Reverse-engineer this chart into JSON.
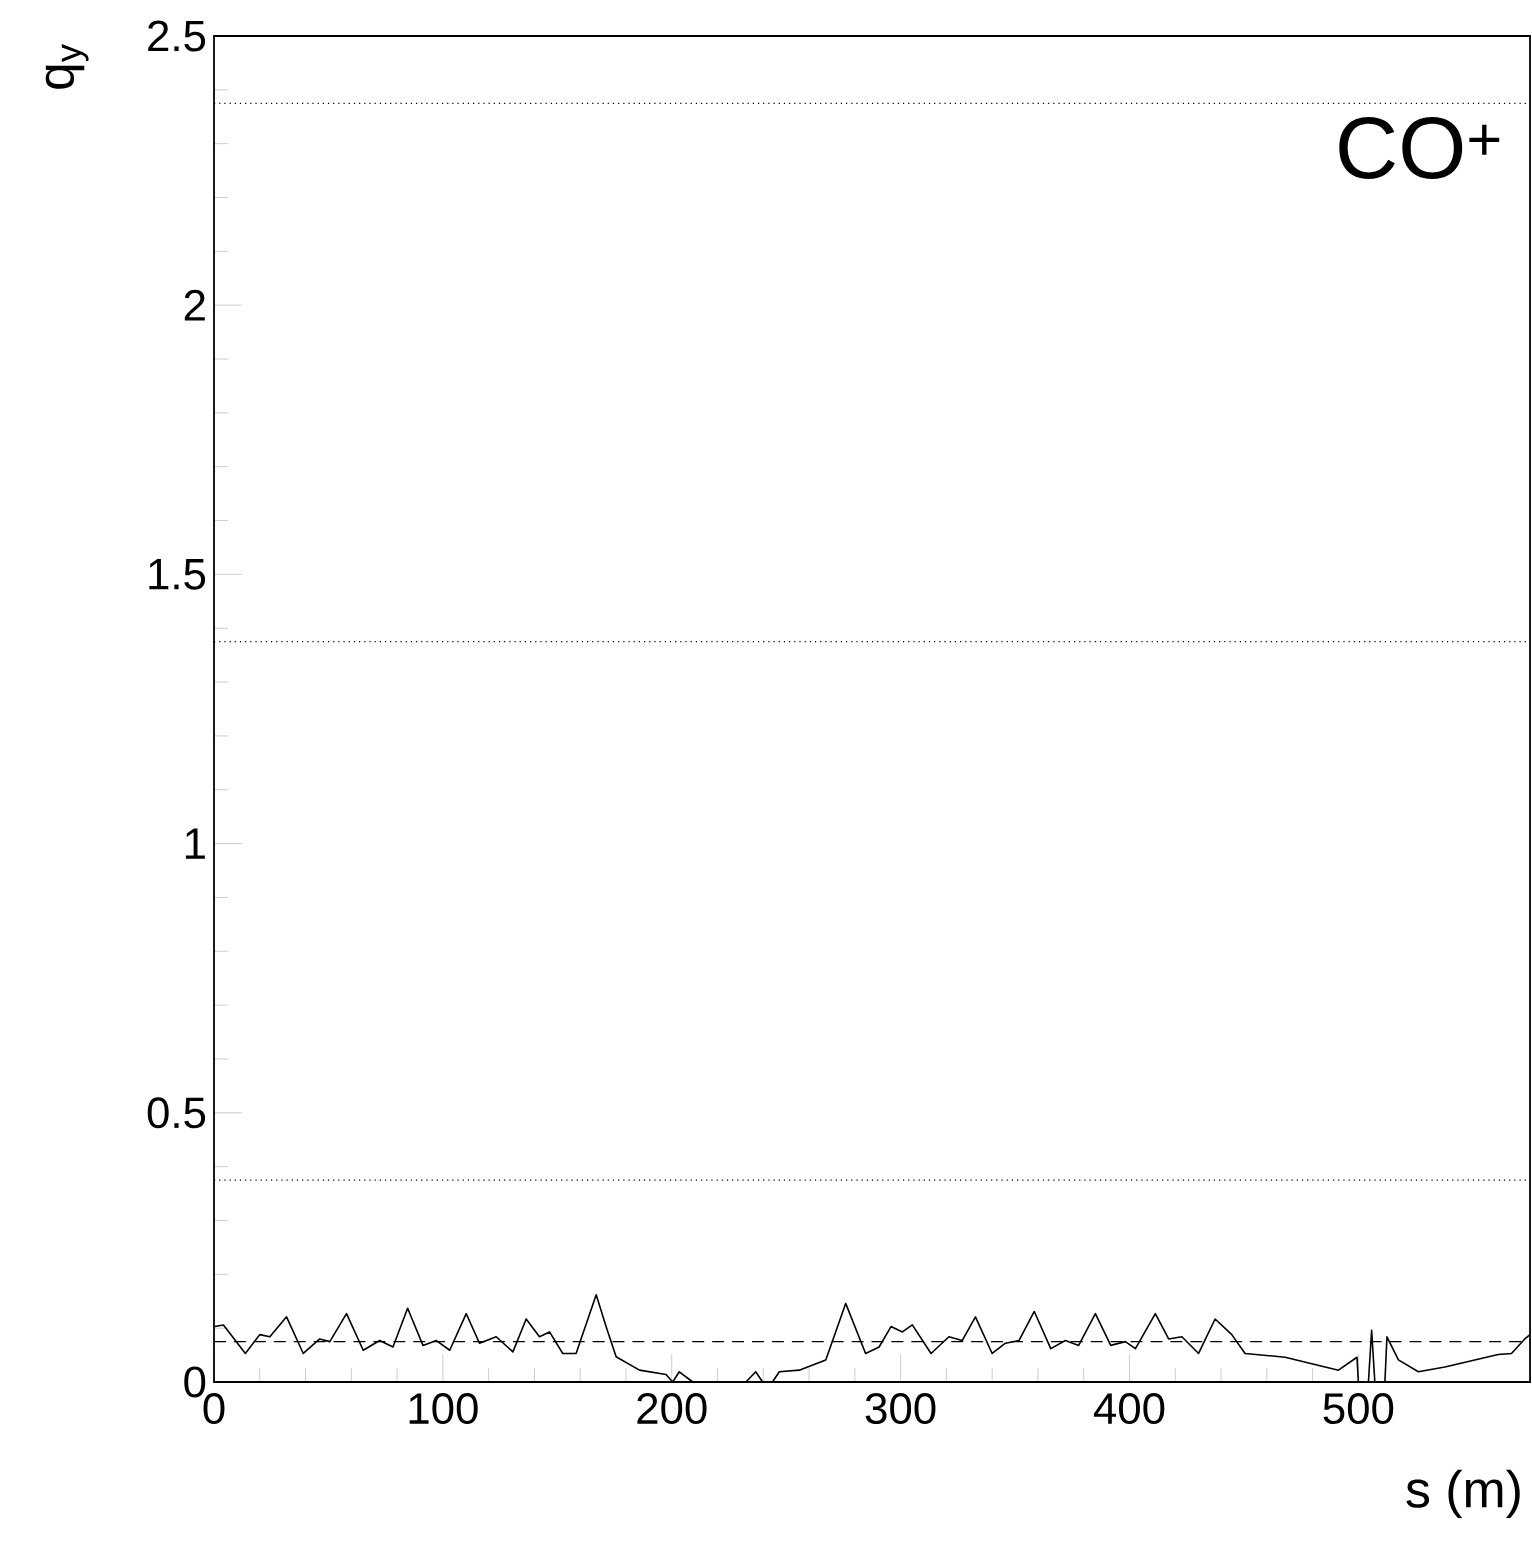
{
  "chart_data": {
    "type": "line",
    "xlabel": "s (m)",
    "ylabel": "q$_{y}$",
    "annotations": [
      "CO$^{+}$"
    ],
    "xlim": [
      0,
      575
    ],
    "ylim": [
      0,
      2.5
    ],
    "xticks": [
      0,
      100,
      200,
      300,
      400,
      500
    ],
    "yticks": [
      0,
      0.5,
      1,
      1.5,
      2,
      2.5
    ],
    "grid": false,
    "marker": "none",
    "line_style": "solid",
    "series": [
      {
        "color": "#000000",
        "x": [
          0.3,
          4.1,
          7,
          13.7,
          20,
          24.4,
          31.7,
          39,
          46.2,
          50.6,
          57.9,
          65.2,
          72.4,
          78.2,
          84.6,
          91.3,
          97.2,
          103,
          110.2,
          116,
          123.3,
          130.6,
          136.4,
          142.2,
          146.6,
          152.4,
          158.2,
          167,
          171.3,
          175.7,
          185.9,
          197.5,
          200.4,
          203.3,
          209.2,
          232.4,
          236.7,
          239.7,
          244,
          247,
          255.7,
          267.3,
          276,
          284.7,
          290.6,
          295.8,
          300.8,
          305.1,
          313.3,
          321.1,
          326.9,
          332.7,
          340,
          345.8,
          351.7,
          358.4,
          365.6,
          372,
          377.8,
          385.1,
          391.8,
          398.2,
          402.6,
          411.3,
          417.1,
          422.9,
          430.2,
          437.4,
          444.7,
          450.5,
          468,
          491.3,
          499.4,
          500,
          504.4,
          505.8,
          507.2,
          511.6,
          512.5,
          517.5,
          526.2,
          537.8,
          561.1,
          566.9,
          572.7,
          575
        ],
        "values": [
          0.103,
          0.106,
          0.09,
          0.053,
          0.088,
          0.084,
          0.121,
          0.053,
          0.08,
          0.075,
          0.127,
          0.059,
          0.077,
          0.065,
          0.137,
          0.068,
          0.077,
          0.059,
          0.127,
          0.072,
          0.084,
          0.056,
          0.117,
          0.084,
          0.093,
          0.053,
          0.053,
          0.162,
          0.103,
          0.047,
          0.022,
          0.014,
          0,
          0.019,
          0,
          0,
          0.019,
          0,
          0,
          0.019,
          0.022,
          0.041,
          0.146,
          0.053,
          0.065,
          0.103,
          0.093,
          0.106,
          0.053,
          0.084,
          0.077,
          0.121,
          0.053,
          0.072,
          0.077,
          0.131,
          0.062,
          0.077,
          0.068,
          0.127,
          0.068,
          0.075,
          0.062,
          0.127,
          0.08,
          0.084,
          0.053,
          0.117,
          0.088,
          0.053,
          0.046,
          0.022,
          0.046,
          0,
          0,
          0.096,
          0,
          0,
          0.084,
          0.041,
          0.019,
          0.028,
          0.051,
          0.053,
          0.08,
          0.088
        ]
      }
    ],
    "ref_lines": [
      {
        "axis": "y",
        "value": 2.375,
        "line_style": "dotted"
      },
      {
        "axis": "y",
        "value": 1.375,
        "line_style": "dotted"
      },
      {
        "axis": "y",
        "value": 0.375,
        "line_style": "dotted"
      },
      {
        "axis": "y",
        "value": 0.075,
        "line_style": "dashed"
      }
    ]
  }
}
